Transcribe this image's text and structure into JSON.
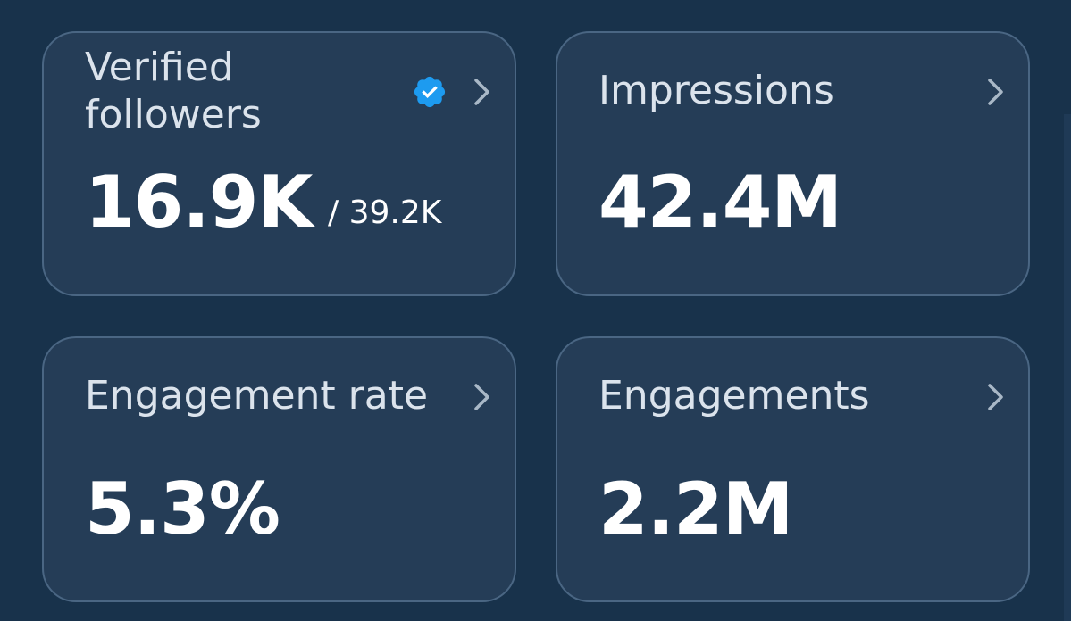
{
  "cards": {
    "verified_followers": {
      "label_line1": "Verified",
      "label_line2": "followers",
      "value": "16.9K",
      "sub_value": "/ 39.2K"
    },
    "impressions": {
      "label": "Impressions",
      "value": "42.4M"
    },
    "engagement_rate": {
      "label": "Engagement rate",
      "value": "5.3%"
    },
    "engagements": {
      "label": "Engagements",
      "value": "2.2M"
    }
  },
  "icons": {
    "verified_badge": "verified-badge-icon",
    "chevron": "chevron-right-icon"
  },
  "colors": {
    "background": "#18324b",
    "card_background": "#253d57",
    "card_border": "#4a6683",
    "label_text": "#dbe3ec",
    "value_text": "#ffffff",
    "chevron": "#a9b8c7",
    "verified_badge": "#1d9bf0"
  }
}
